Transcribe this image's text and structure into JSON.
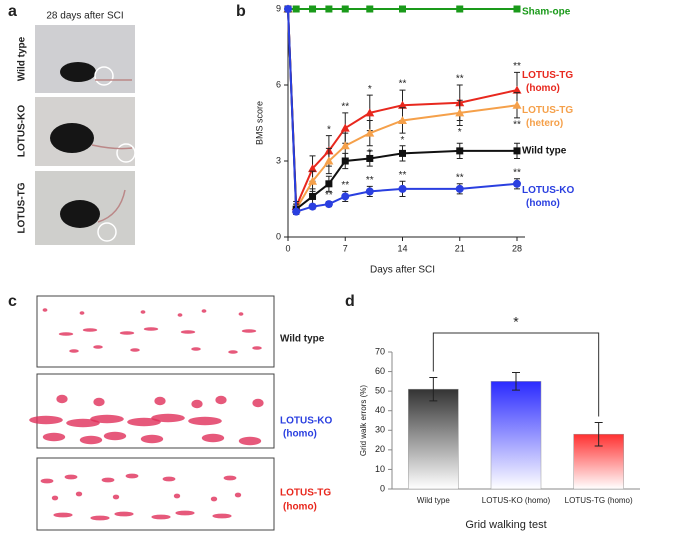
{
  "panel_labels": [
    "a",
    "b",
    "c",
    "d"
  ],
  "panel_a": {
    "title": "28 days after SCI",
    "rows": [
      "Wild type",
      "LOTUS-KO",
      "LOTUS-TG"
    ]
  },
  "panel_c": {
    "rows": [
      {
        "name": "Wild type"
      },
      {
        "name": "LOTUS-KO",
        "sub": "(homo)"
      },
      {
        "name": "LOTUS-TG",
        "sub": "(homo)"
      }
    ]
  },
  "chart_data": [
    {
      "type": "line",
      "xlabel": "Days after SCI",
      "ylabel": "BMS score",
      "x": [
        0,
        1,
        3,
        5,
        7,
        10,
        14,
        21,
        28
      ],
      "xlim": [
        0,
        28
      ],
      "xticks": [
        0,
        7,
        14,
        21,
        28
      ],
      "ylim": [
        0,
        9
      ],
      "yticks": [
        0,
        3,
        6,
        9
      ],
      "series": [
        {
          "name": "Sham-ope",
          "color": "#1a9a1a",
          "marker": "square",
          "values": [
            9,
            9,
            9,
            9,
            9,
            9,
            9,
            9,
            9
          ]
        },
        {
          "name": "LOTUS-TG (homo)",
          "color": "#e8281e",
          "marker": "triangle",
          "values": [
            9,
            1.2,
            2.7,
            3.4,
            4.3,
            4.9,
            5.2,
            5.3,
            5.8
          ],
          "errors": [
            0,
            0.2,
            0.5,
            0.6,
            0.6,
            0.7,
            0.6,
            0.7,
            0.7
          ],
          "significance": [
            null,
            null,
            null,
            "*",
            "**",
            "*",
            "**",
            "**",
            "**"
          ]
        },
        {
          "name": "LOTUS-TG (hetero)",
          "color": "#f5a04a",
          "marker": "triangle",
          "values": [
            9,
            1.1,
            2.2,
            3.0,
            3.6,
            4.1,
            4.6,
            4.9,
            5.2
          ],
          "errors": [
            0,
            0.2,
            0.4,
            0.5,
            0.5,
            0.5,
            0.5,
            0.5,
            0.5
          ],
          "significance": [
            null,
            null,
            null,
            null,
            null,
            "*",
            "*",
            "*",
            "**"
          ]
        },
        {
          "name": "Wild type",
          "color": "#111111",
          "marker": "square",
          "values": [
            9,
            1.1,
            1.6,
            2.1,
            3.0,
            3.1,
            3.3,
            3.4,
            3.4
          ],
          "errors": [
            0,
            0.2,
            0.3,
            0.3,
            0.3,
            0.3,
            0.3,
            0.3,
            0.3
          ]
        },
        {
          "name": "LOTUS-KO (homo)",
          "color": "#2a3fe0",
          "marker": "circle",
          "values": [
            9,
            1.0,
            1.2,
            1.3,
            1.6,
            1.8,
            1.9,
            1.9,
            2.1
          ],
          "errors": [
            0,
            0.1,
            0.1,
            0.1,
            0.2,
            0.2,
            0.3,
            0.2,
            0.2
          ],
          "significance": [
            null,
            null,
            null,
            "**",
            "**",
            "**",
            "**",
            "**",
            "**"
          ]
        }
      ]
    },
    {
      "type": "bar",
      "xlabel": "Grid walking test",
      "ylabel": "Grid walk errors (%)",
      "categories": [
        "Wild type",
        "LOTUS-KO (homo)",
        "LOTUS-TG (homo)"
      ],
      "values": [
        51,
        55,
        28
      ],
      "errors": [
        6,
        4.5,
        6
      ],
      "colors": [
        "#333333",
        "#2a2aff",
        "#ff3030"
      ],
      "ylim": [
        0,
        70
      ],
      "yticks": [
        0,
        10,
        20,
        30,
        40,
        50,
        60,
        70
      ],
      "significance_label": "*"
    }
  ]
}
